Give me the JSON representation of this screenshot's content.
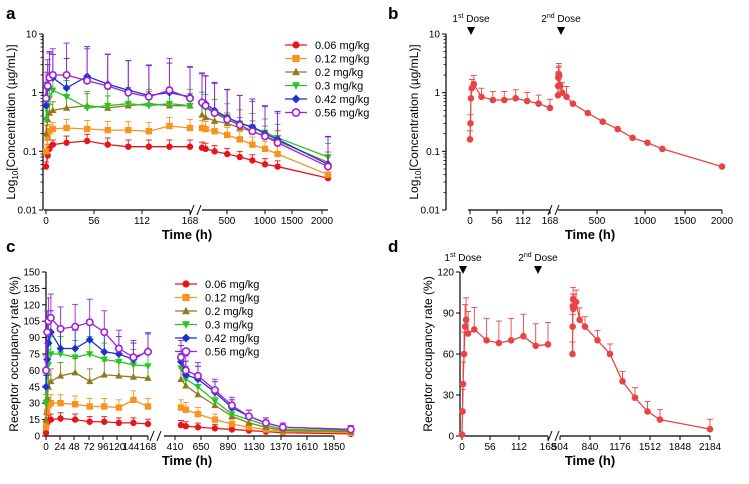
{
  "colors": {
    "c1": "#e8141a",
    "c2": "#f7931e",
    "c3": "#8f7c1c",
    "c4": "#22c722",
    "c5": "#1c2fd6",
    "c6": "#a020d8",
    "single": "#e84446"
  },
  "dose_labels": {
    "first": "1st Dose",
    "second": "2nd Dose",
    "first_sup": "st",
    "second_sup": "nd",
    "first_num": "1",
    "second_num": "2",
    "word": " Dose"
  },
  "chart_data": [
    {
      "panel": "a",
      "type": "line",
      "xlabel": "Time (h)",
      "ylabel": "Log10[Concentration (µg/mL)]",
      "yscale": "log",
      "ylim": [
        0.01,
        10
      ],
      "yticks": [
        "0.01",
        "0.1",
        "1",
        "10"
      ],
      "xticks": [
        "0",
        "56",
        "112",
        "168",
        "500",
        "1000",
        "1500",
        "2000"
      ],
      "legend": [
        "0.06 mg/kg",
        "0.12 mg/kg",
        "0.2 mg/kg",
        "0.3 mg/kg",
        "0.42 mg/kg",
        "0.56 mg/kg"
      ],
      "x": [
        0,
        2,
        4,
        8,
        24,
        48,
        72,
        96,
        120,
        144,
        168,
        336,
        384,
        504,
        672,
        840,
        1008,
        1176,
        1344,
        2016
      ],
      "series": [
        {
          "name": "0.06 mg/kg",
          "values": [
            0.055,
            0.085,
            0.11,
            0.13,
            0.14,
            0.15,
            0.13,
            0.12,
            0.12,
            0.12,
            0.12,
            0.115,
            0.11,
            0.1,
            0.09,
            0.08,
            0.07,
            0.06,
            0.055,
            0.035
          ]
        },
        {
          "name": "0.12 mg/kg",
          "values": [
            0.1,
            0.17,
            0.22,
            0.24,
            0.25,
            0.24,
            0.23,
            0.23,
            0.22,
            0.27,
            0.25,
            0.25,
            0.24,
            0.22,
            0.19,
            0.16,
            0.13,
            0.11,
            0.09,
            0.04
          ]
        },
        {
          "name": "0.2 mg/kg",
          "values": [
            0.2,
            0.35,
            0.45,
            0.5,
            0.55,
            0.6,
            0.55,
            0.6,
            0.65,
            0.6,
            0.6,
            0.42,
            0.38,
            0.33,
            0.3,
            0.25,
            0.22,
            0.18,
            0.15,
            0.065
          ]
        },
        {
          "name": "0.3 mg/kg",
          "values": [
            0.35,
            0.6,
            0.8,
            1.1,
            0.85,
            0.55,
            0.6,
            0.65,
            0.6,
            0.65,
            0.6,
            0.6,
            0.55,
            0.45,
            0.38,
            0.3,
            0.26,
            0.21,
            0.17,
            0.08
          ]
        },
        {
          "name": "0.42 mg/kg",
          "values": [
            0.6,
            1.2,
            1.9,
            1.8,
            1.2,
            1.9,
            1.4,
            1.1,
            0.9,
            1.0,
            0.85,
            0.7,
            0.65,
            0.5,
            0.38,
            0.3,
            0.26,
            0.2,
            0.16,
            0.06
          ]
        },
        {
          "name": "0.56 mg/kg",
          "values": [
            0.8,
            1.3,
            1.8,
            2.0,
            2.0,
            1.6,
            1.3,
            1.0,
            0.85,
            1.1,
            0.8,
            0.68,
            0.6,
            0.45,
            0.35,
            0.28,
            0.22,
            0.18,
            0.14,
            0.055
          ]
        }
      ]
    },
    {
      "panel": "b",
      "type": "line",
      "xlabel": "Time (h)",
      "ylabel": "Log10[Concentration (µg/mL)]",
      "yscale": "log",
      "ylim": [
        0.01,
        10
      ],
      "yticks": [
        "0.01",
        "0.1",
        "1",
        "10"
      ],
      "xticks": [
        "0",
        "56",
        "112",
        "168",
        "500",
        "1000",
        "1500",
        "2000"
      ],
      "x": [
        0,
        1,
        2,
        4,
        8,
        24,
        48,
        72,
        96,
        120,
        144,
        168,
        336,
        338,
        340,
        344,
        348,
        360,
        384,
        432,
        504,
        672,
        840,
        1008,
        1176,
        1344,
        1512,
        2184
      ],
      "values": [
        0.16,
        0.3,
        0.8,
        1.2,
        1.4,
        0.85,
        0.75,
        0.75,
        0.8,
        0.72,
        0.65,
        0.55,
        0.9,
        1.3,
        1.8,
        2.1,
        1.9,
        1.3,
        1.0,
        0.85,
        0.65,
        0.45,
        0.32,
        0.24,
        0.17,
        0.14,
        0.11,
        0.055
      ]
    },
    {
      "panel": "c",
      "type": "line",
      "xlabel": "Time (h)",
      "ylabel": "Receptor occupancy rate (%)",
      "ylim": [
        0,
        150
      ],
      "yticks": [
        "0",
        "15",
        "30",
        "45",
        "60",
        "75",
        "90",
        "105",
        "120",
        "135",
        "150"
      ],
      "xticks": [
        "0",
        "24",
        "48",
        "72",
        "96",
        "120",
        "144",
        "168",
        "410",
        "650",
        "890",
        "1130",
        "1370",
        "1610",
        "1850"
      ],
      "legend": [
        "0.06 mg/kg",
        "0.12 mg/kg",
        "0.2 mg/kg",
        "0.3 mg/kg",
        "0.42 mg/kg",
        "0.56 mg/kg"
      ],
      "x": [
        0,
        2,
        4,
        8,
        24,
        48,
        72,
        96,
        120,
        144,
        168,
        336,
        384,
        504,
        672,
        840,
        1008,
        1176,
        1344,
        2016
      ],
      "series": [
        {
          "name": "0.06 mg/kg",
          "values": [
            3,
            12,
            14,
            15,
            16,
            15,
            13,
            13,
            12,
            12,
            11,
            10,
            9,
            8,
            7,
            6,
            5,
            4,
            3,
            2
          ]
        },
        {
          "name": "0.12 mg/kg",
          "values": [
            8,
            22,
            28,
            30,
            30,
            29,
            27,
            27,
            26,
            33,
            27,
            26,
            24,
            20,
            15,
            11,
            8,
            6,
            4,
            3
          ]
        },
        {
          "name": "0.2 mg/kg",
          "values": [
            15,
            35,
            45,
            50,
            55,
            58,
            50,
            56,
            55,
            54,
            53,
            52,
            46,
            38,
            28,
            18,
            12,
            8,
            5,
            4
          ]
        },
        {
          "name": "0.3 mg/kg",
          "values": [
            30,
            55,
            65,
            75,
            75,
            72,
            75,
            70,
            68,
            65,
            64,
            62,
            52,
            45,
            32,
            20,
            15,
            10,
            6,
            5
          ]
        },
        {
          "name": "0.42 mg/kg",
          "values": [
            45,
            70,
            85,
            95,
            80,
            80,
            88,
            77,
            75,
            70,
            78,
            68,
            56,
            52,
            40,
            26,
            18,
            12,
            8,
            6
          ]
        },
        {
          "name": "0.56 mg/kg",
          "values": [
            60,
            95,
            105,
            108,
            98,
            100,
            104,
            95,
            80,
            72,
            77,
            72,
            60,
            55,
            42,
            28,
            18,
            12,
            8,
            6
          ]
        }
      ]
    },
    {
      "panel": "d",
      "type": "line",
      "xlabel": "Time (h)",
      "ylabel": "Receptor occupancy rate (%)",
      "ylim": [
        0,
        120
      ],
      "yticks": [
        "0",
        "30",
        "60",
        "90",
        "120"
      ],
      "xticks": [
        "0",
        "56",
        "112",
        "168",
        "504",
        "840",
        "1176",
        "1512",
        "1848",
        "2184"
      ],
      "x": [
        0,
        1,
        2,
        4,
        6,
        8,
        12,
        24,
        48,
        72,
        96,
        120,
        144,
        168,
        336,
        338,
        340,
        344,
        348,
        360,
        384,
        432,
        504,
        672,
        840,
        1008,
        1176,
        1344,
        1512,
        2184
      ],
      "values": [
        1,
        18,
        38,
        60,
        80,
        85,
        75,
        78,
        70,
        68,
        70,
        73,
        66,
        67,
        60,
        80,
        95,
        100,
        93,
        95,
        98,
        85,
        80,
        70,
        60,
        40,
        28,
        18,
        12,
        5
      ]
    }
  ]
}
